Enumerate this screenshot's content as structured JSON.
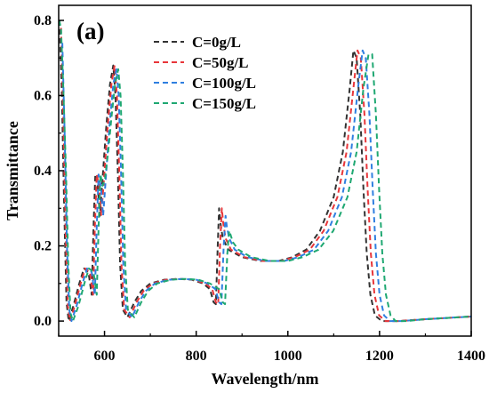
{
  "panel_label": "(a)",
  "chart_data": {
    "type": "line",
    "xlabel": "Wavelength/nm",
    "ylabel": "Transmittance",
    "xlim": [
      500,
      1400
    ],
    "ylim": [
      -0.04,
      0.84
    ],
    "x_ticks": [
      600,
      800,
      1000,
      1200,
      1400
    ],
    "y_ticks": [
      0.0,
      0.2,
      0.4,
      0.6,
      0.8
    ],
    "x_tick_labels": [
      "600",
      "800",
      "1000",
      "1200",
      "1400"
    ],
    "y_tick_labels": [
      "0.0",
      "0.2",
      "0.4",
      "0.6",
      "0.8"
    ],
    "line_style": "dashed",
    "grid": false,
    "legend_position": "top-center",
    "series": [
      {
        "name": "C=0g/L",
        "color": "#333333",
        "points": [
          [
            502,
            0.8
          ],
          [
            507,
            0.6
          ],
          [
            512,
            0.3
          ],
          [
            517,
            0.05
          ],
          [
            522,
            0.0
          ],
          [
            532,
            0.04
          ],
          [
            545,
            0.1
          ],
          [
            555,
            0.14
          ],
          [
            565,
            0.13
          ],
          [
            572,
            0.07
          ],
          [
            576,
            0.25
          ],
          [
            580,
            0.39
          ],
          [
            585,
            0.36
          ],
          [
            590,
            0.28
          ],
          [
            597,
            0.4
          ],
          [
            604,
            0.52
          ],
          [
            612,
            0.63
          ],
          [
            619,
            0.68
          ],
          [
            624,
            0.6
          ],
          [
            629,
            0.4
          ],
          [
            634,
            0.15
          ],
          [
            640,
            0.03
          ],
          [
            650,
            0.01
          ],
          [
            665,
            0.05
          ],
          [
            680,
            0.08
          ],
          [
            700,
            0.1
          ],
          [
            730,
            0.11
          ],
          [
            760,
            0.112
          ],
          [
            790,
            0.11
          ],
          [
            815,
            0.1
          ],
          [
            830,
            0.085
          ],
          [
            838,
            0.05
          ],
          [
            843,
            0.045
          ],
          [
            847,
            0.2
          ],
          [
            850,
            0.3
          ],
          [
            853,
            0.26
          ],
          [
            858,
            0.22
          ],
          [
            870,
            0.19
          ],
          [
            900,
            0.17
          ],
          [
            940,
            0.16
          ],
          [
            980,
            0.16
          ],
          [
            1010,
            0.17
          ],
          [
            1040,
            0.19
          ],
          [
            1070,
            0.24
          ],
          [
            1100,
            0.33
          ],
          [
            1120,
            0.45
          ],
          [
            1135,
            0.62
          ],
          [
            1143,
            0.72
          ],
          [
            1150,
            0.7
          ],
          [
            1158,
            0.55
          ],
          [
            1165,
            0.35
          ],
          [
            1172,
            0.18
          ],
          [
            1180,
            0.07
          ],
          [
            1190,
            0.015
          ],
          [
            1205,
            0.0
          ],
          [
            1240,
            0.0
          ],
          [
            1300,
            0.005
          ],
          [
            1400,
            0.012
          ]
        ]
      },
      {
        "name": "C=50g/L",
        "color": "#e8363a",
        "points": [
          [
            505,
            0.78
          ],
          [
            510,
            0.55
          ],
          [
            515,
            0.25
          ],
          [
            520,
            0.04
          ],
          [
            525,
            0.0
          ],
          [
            535,
            0.04
          ],
          [
            548,
            0.1
          ],
          [
            558,
            0.14
          ],
          [
            568,
            0.13
          ],
          [
            575,
            0.07
          ],
          [
            579,
            0.25
          ],
          [
            583,
            0.39
          ],
          [
            588,
            0.36
          ],
          [
            593,
            0.28
          ],
          [
            600,
            0.4
          ],
          [
            607,
            0.52
          ],
          [
            615,
            0.63
          ],
          [
            622,
            0.68
          ],
          [
            627,
            0.6
          ],
          [
            632,
            0.4
          ],
          [
            637,
            0.15
          ],
          [
            643,
            0.03
          ],
          [
            655,
            0.01
          ],
          [
            670,
            0.05
          ],
          [
            685,
            0.08
          ],
          [
            705,
            0.1
          ],
          [
            735,
            0.11
          ],
          [
            765,
            0.112
          ],
          [
            795,
            0.11
          ],
          [
            820,
            0.1
          ],
          [
            835,
            0.085
          ],
          [
            843,
            0.05
          ],
          [
            848,
            0.045
          ],
          [
            852,
            0.2
          ],
          [
            856,
            0.3
          ],
          [
            859,
            0.26
          ],
          [
            864,
            0.22
          ],
          [
            876,
            0.19
          ],
          [
            905,
            0.17
          ],
          [
            945,
            0.16
          ],
          [
            985,
            0.16
          ],
          [
            1015,
            0.17
          ],
          [
            1048,
            0.19
          ],
          [
            1078,
            0.24
          ],
          [
            1108,
            0.33
          ],
          [
            1128,
            0.45
          ],
          [
            1143,
            0.62
          ],
          [
            1152,
            0.72
          ],
          [
            1159,
            0.7
          ],
          [
            1167,
            0.55
          ],
          [
            1174,
            0.35
          ],
          [
            1181,
            0.18
          ],
          [
            1189,
            0.07
          ],
          [
            1199,
            0.015
          ],
          [
            1213,
            0.0
          ],
          [
            1245,
            0.0
          ],
          [
            1300,
            0.005
          ],
          [
            1400,
            0.012
          ]
        ]
      },
      {
        "name": "C=100g/L",
        "color": "#2f7fe0",
        "points": [
          [
            508,
            0.74
          ],
          [
            513,
            0.5
          ],
          [
            518,
            0.2
          ],
          [
            523,
            0.03
          ],
          [
            528,
            0.0
          ],
          [
            539,
            0.04
          ],
          [
            552,
            0.1
          ],
          [
            562,
            0.14
          ],
          [
            572,
            0.13
          ],
          [
            579,
            0.07
          ],
          [
            583,
            0.25
          ],
          [
            587,
            0.39
          ],
          [
            592,
            0.36
          ],
          [
            597,
            0.28
          ],
          [
            604,
            0.4
          ],
          [
            611,
            0.52
          ],
          [
            619,
            0.63
          ],
          [
            626,
            0.67
          ],
          [
            631,
            0.6
          ],
          [
            636,
            0.4
          ],
          [
            641,
            0.15
          ],
          [
            647,
            0.03
          ],
          [
            660,
            0.01
          ],
          [
            675,
            0.05
          ],
          [
            690,
            0.08
          ],
          [
            710,
            0.1
          ],
          [
            740,
            0.11
          ],
          [
            770,
            0.112
          ],
          [
            800,
            0.11
          ],
          [
            825,
            0.1
          ],
          [
            842,
            0.085
          ],
          [
            850,
            0.05
          ],
          [
            855,
            0.045
          ],
          [
            860,
            0.2
          ],
          [
            864,
            0.28
          ],
          [
            867,
            0.25
          ],
          [
            872,
            0.22
          ],
          [
            884,
            0.19
          ],
          [
            912,
            0.17
          ],
          [
            952,
            0.16
          ],
          [
            992,
            0.16
          ],
          [
            1023,
            0.17
          ],
          [
            1057,
            0.19
          ],
          [
            1088,
            0.24
          ],
          [
            1118,
            0.33
          ],
          [
            1138,
            0.45
          ],
          [
            1153,
            0.62
          ],
          [
            1163,
            0.72
          ],
          [
            1170,
            0.7
          ],
          [
            1178,
            0.55
          ],
          [
            1185,
            0.35
          ],
          [
            1192,
            0.18
          ],
          [
            1200,
            0.07
          ],
          [
            1210,
            0.015
          ],
          [
            1223,
            0.0
          ],
          [
            1250,
            0.0
          ],
          [
            1300,
            0.005
          ],
          [
            1400,
            0.012
          ]
        ]
      },
      {
        "name": "C=150g/L",
        "color": "#1fa872",
        "points": [
          [
            501,
            0.8
          ],
          [
            505,
            0.78
          ],
          [
            510,
            0.62
          ],
          [
            516,
            0.4
          ],
          [
            521,
            0.15
          ],
          [
            526,
            0.02
          ],
          [
            531,
            0.0
          ],
          [
            543,
            0.04
          ],
          [
            556,
            0.1
          ],
          [
            566,
            0.14
          ],
          [
            576,
            0.13
          ],
          [
            583,
            0.07
          ],
          [
            587,
            0.25
          ],
          [
            591,
            0.39
          ],
          [
            596,
            0.36
          ],
          [
            601,
            0.38
          ],
          [
            608,
            0.45
          ],
          [
            615,
            0.54
          ],
          [
            623,
            0.63
          ],
          [
            630,
            0.67
          ],
          [
            635,
            0.6
          ],
          [
            640,
            0.4
          ],
          [
            645,
            0.15
          ],
          [
            651,
            0.03
          ],
          [
            665,
            0.01
          ],
          [
            680,
            0.05
          ],
          [
            695,
            0.08
          ],
          [
            715,
            0.1
          ],
          [
            745,
            0.11
          ],
          [
            775,
            0.112
          ],
          [
            805,
            0.11
          ],
          [
            830,
            0.1
          ],
          [
            850,
            0.085
          ],
          [
            858,
            0.05
          ],
          [
            863,
            0.045
          ],
          [
            868,
            0.18
          ],
          [
            872,
            0.24
          ],
          [
            875,
            0.23
          ],
          [
            880,
            0.21
          ],
          [
            892,
            0.19
          ],
          [
            920,
            0.17
          ],
          [
            960,
            0.16
          ],
          [
            1000,
            0.16
          ],
          [
            1032,
            0.17
          ],
          [
            1067,
            0.19
          ],
          [
            1099,
            0.24
          ],
          [
            1130,
            0.33
          ],
          [
            1150,
            0.45
          ],
          [
            1165,
            0.62
          ],
          [
            1176,
            0.71
          ],
          [
            1184,
            0.71
          ],
          [
            1192,
            0.55
          ],
          [
            1199,
            0.35
          ],
          [
            1206,
            0.18
          ],
          [
            1214,
            0.07
          ],
          [
            1224,
            0.015
          ],
          [
            1235,
            0.0
          ],
          [
            1260,
            0.0
          ],
          [
            1300,
            0.005
          ],
          [
            1400,
            0.012
          ]
        ]
      }
    ]
  }
}
